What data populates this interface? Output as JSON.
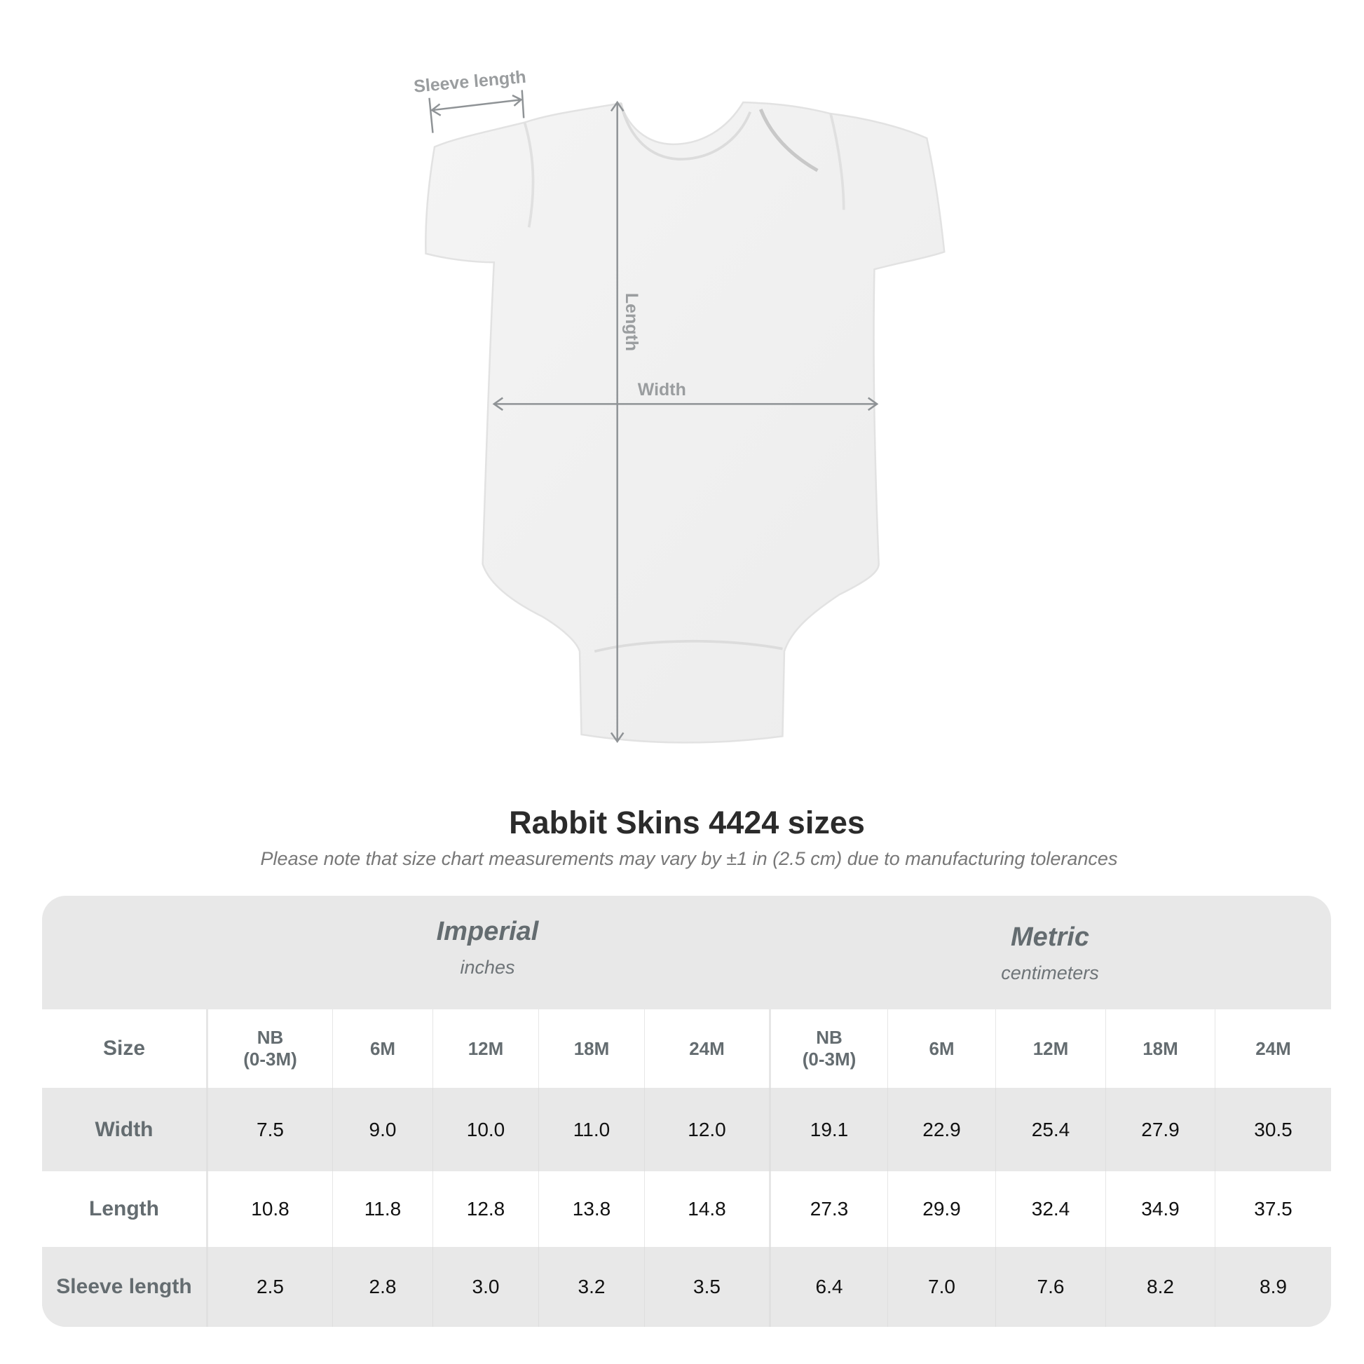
{
  "diagram": {
    "labels": {
      "sleeve": "Sleeve length",
      "length": "Length",
      "width": "Width"
    }
  },
  "title": "Rabbit Skins 4424 sizes",
  "subtitle": "Please note that size chart measurements may vary by ±1 in (2.5 cm) due to manufacturing tolerances",
  "table": {
    "imperial": {
      "name": "Imperial",
      "unit": "inches"
    },
    "metric": {
      "name": "Metric",
      "unit": "centimeters"
    },
    "size_label": "Size",
    "sizes": [
      {
        "line1": "NB",
        "line2": "(0-3M)"
      },
      {
        "line1": "6M",
        "line2": ""
      },
      {
        "line1": "12M",
        "line2": ""
      },
      {
        "line1": "18M",
        "line2": ""
      },
      {
        "line1": "24M",
        "line2": ""
      }
    ],
    "rows": [
      {
        "label": "Width",
        "imperial": [
          "7.5",
          "9.0",
          "10.0",
          "11.0",
          "12.0"
        ],
        "metric": [
          "19.1",
          "22.9",
          "25.4",
          "27.9",
          "30.5"
        ]
      },
      {
        "label": "Length",
        "imperial": [
          "10.8",
          "11.8",
          "12.8",
          "13.8",
          "14.8"
        ],
        "metric": [
          "27.3",
          "29.9",
          "32.4",
          "34.9",
          "37.5"
        ]
      },
      {
        "label": "Sleeve length",
        "imperial": [
          "2.5",
          "2.8",
          "3.0",
          "3.2",
          "3.5"
        ],
        "metric": [
          "6.4",
          "7.0",
          "7.6",
          "8.2",
          "8.9"
        ]
      }
    ]
  }
}
